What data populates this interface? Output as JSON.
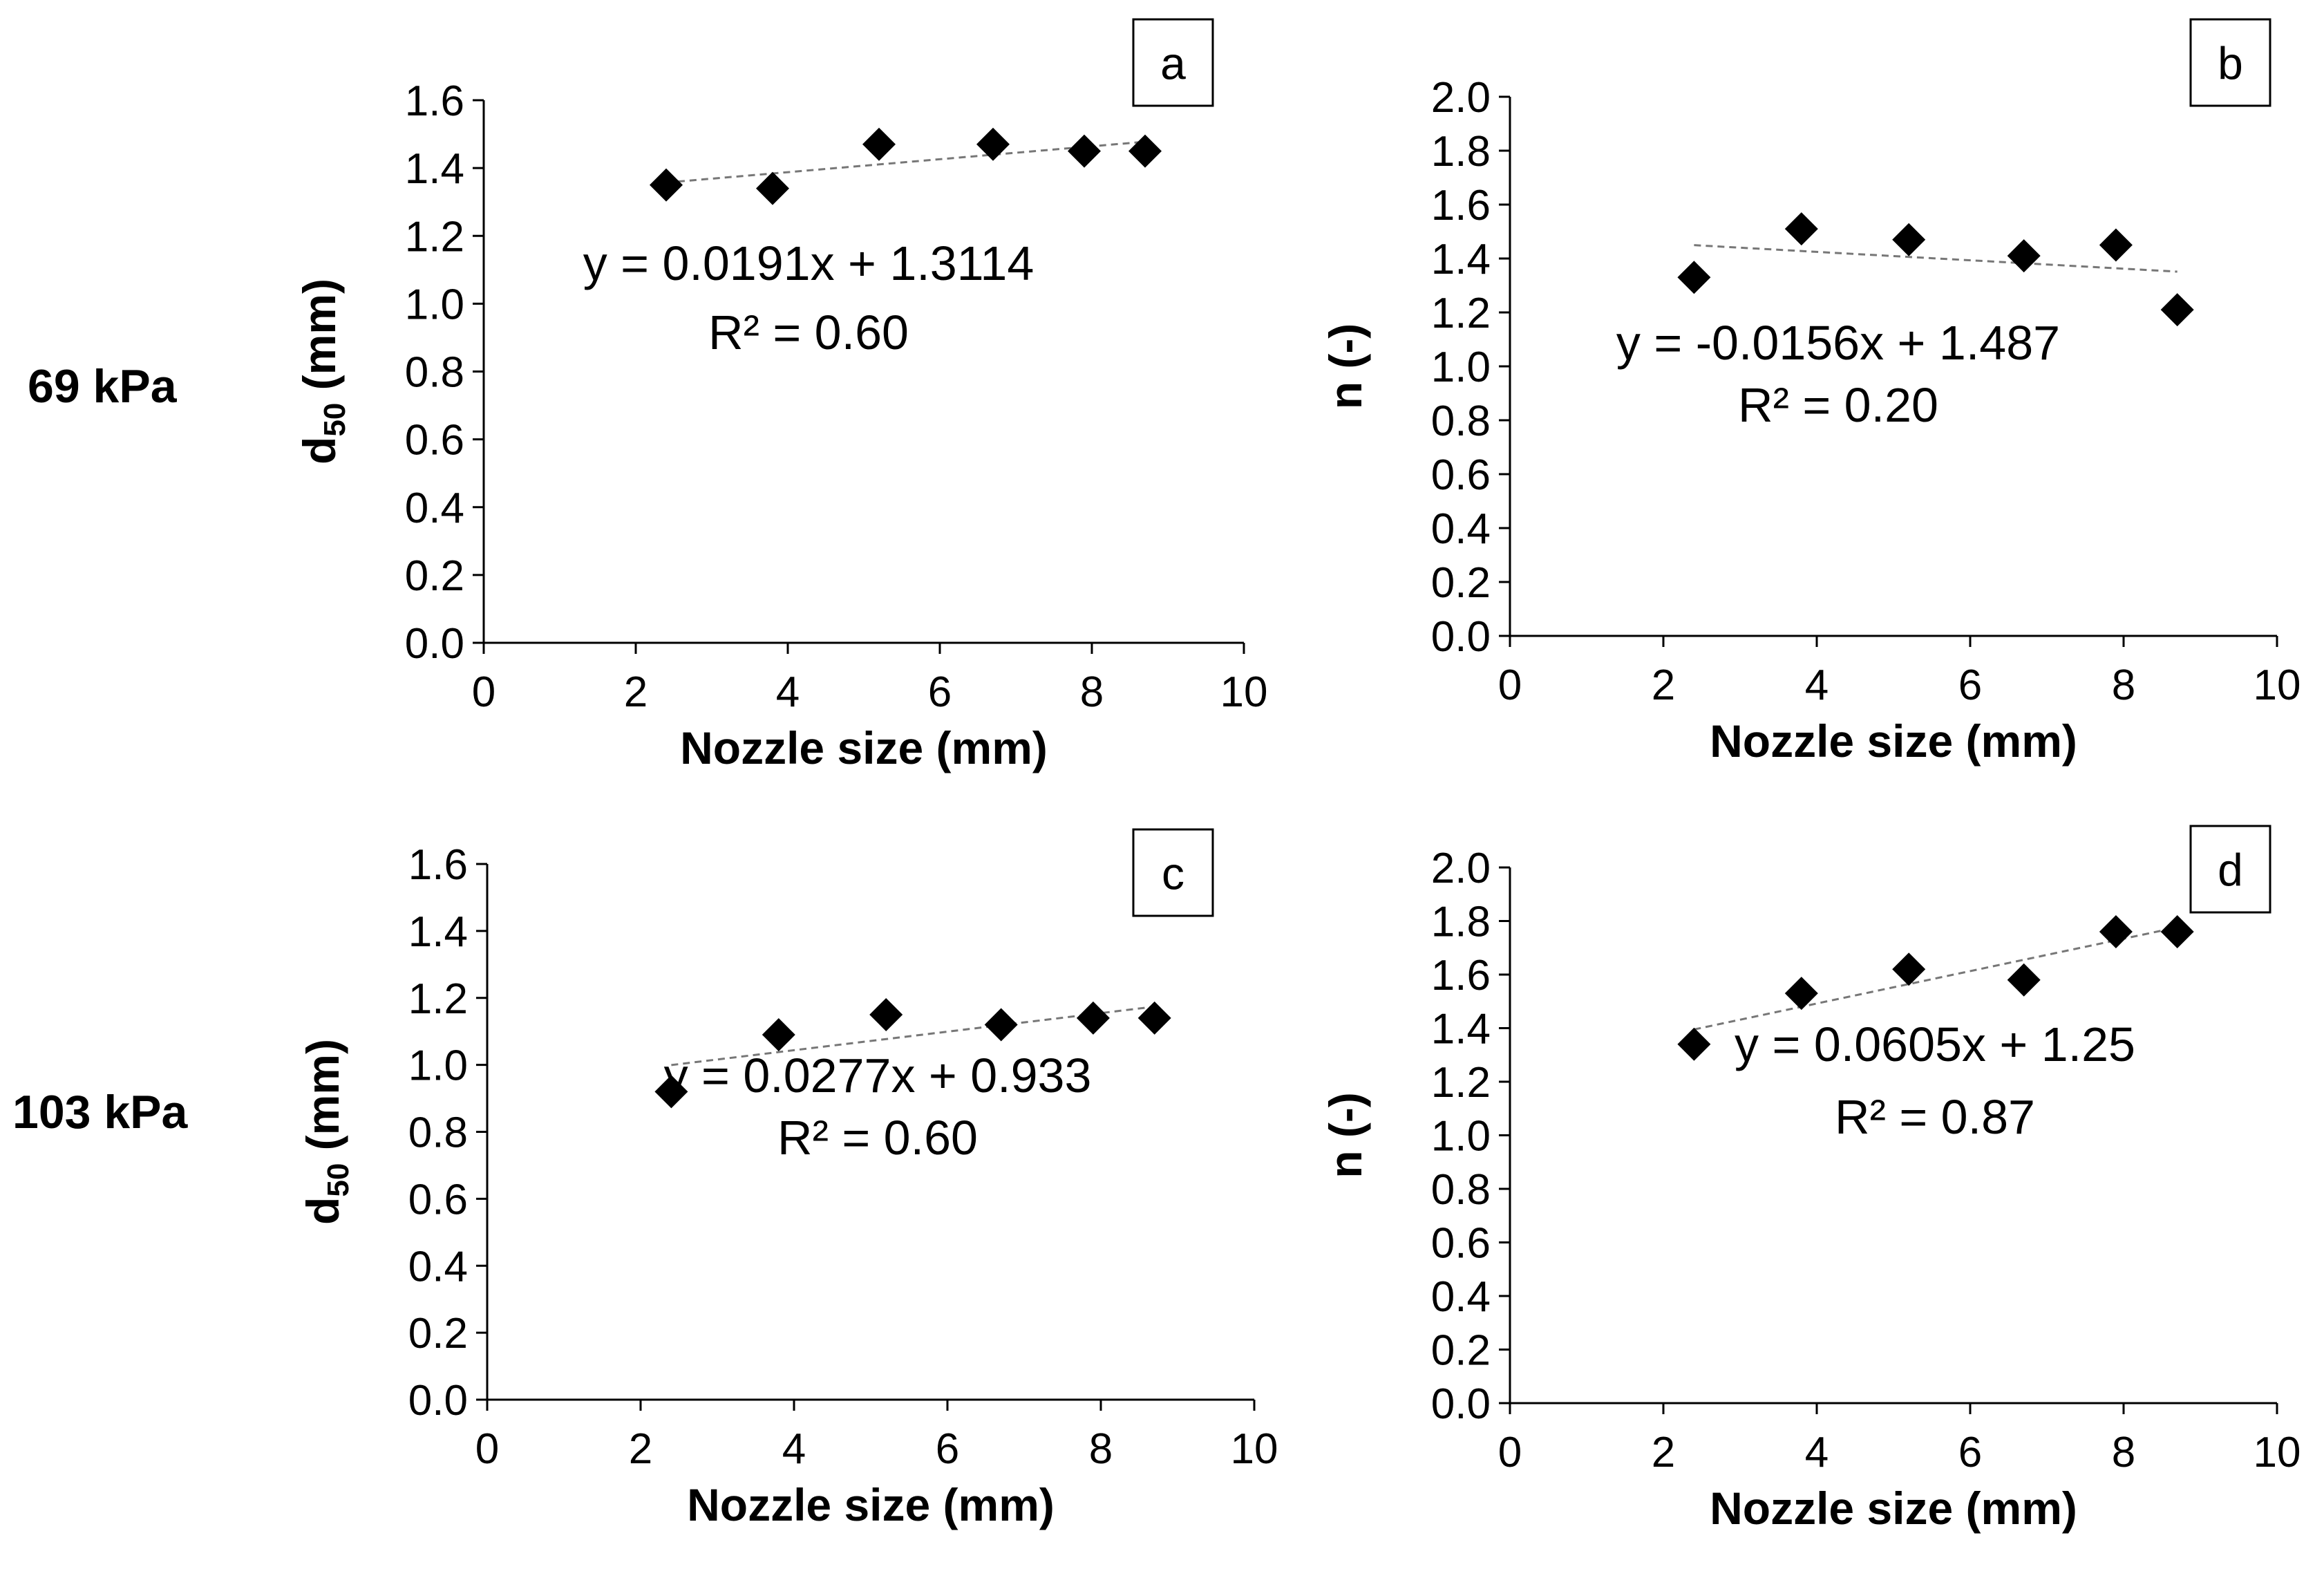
{
  "row_labels": [
    "69 kPa",
    "103 kPa"
  ],
  "chart_data": [
    {
      "type": "scatter",
      "panel": "a",
      "xlabel": "Nozzle size (mm)",
      "ylabel_main": "d",
      "ylabel_sub": "50",
      "ylabel_tail": " (mm)",
      "xlim": [
        0,
        10
      ],
      "xticks": [
        0,
        2,
        4,
        6,
        8,
        10
      ],
      "ylim": [
        0,
        1.6
      ],
      "yticks": [
        "0.0",
        "0.2",
        "0.4",
        "0.6",
        "0.8",
        "1.0",
        "1.2",
        "1.4",
        "1.6"
      ],
      "x": [
        2.4,
        3.8,
        5.2,
        6.7,
        7.9,
        8.7
      ],
      "y": [
        1.35,
        1.34,
        1.47,
        1.47,
        1.45,
        1.45
      ],
      "trendline": {
        "slope": 0.0191,
        "intercept": 1.3114,
        "equation": "y = 0.0191x + 1.3114",
        "r2": "R² = 0.60"
      }
    },
    {
      "type": "scatter",
      "panel": "b",
      "xlabel": "Nozzle size (mm)",
      "ylabel_main": "n (-)",
      "xlim": [
        0,
        10
      ],
      "xticks": [
        0,
        2,
        4,
        6,
        8,
        10
      ],
      "ylim": [
        0,
        2.0
      ],
      "yticks": [
        "0.0",
        "0.2",
        "0.4",
        "0.6",
        "0.8",
        "1.0",
        "1.2",
        "1.4",
        "1.6",
        "1.8",
        "2.0"
      ],
      "x": [
        2.4,
        3.8,
        5.2,
        6.7,
        7.9,
        8.7
      ],
      "y": [
        1.33,
        1.51,
        1.47,
        1.41,
        1.45,
        1.21
      ],
      "trendline": {
        "slope": -0.0156,
        "intercept": 1.487,
        "equation": "y = -0.0156x + 1.487",
        "r2": "R² = 0.20"
      }
    },
    {
      "type": "scatter",
      "panel": "c",
      "xlabel": "Nozzle size (mm)",
      "ylabel_main": "d",
      "ylabel_sub": "50",
      "ylabel_tail": " (mm)",
      "xlim": [
        0,
        10
      ],
      "xticks": [
        0,
        2,
        4,
        6,
        8,
        10
      ],
      "ylim": [
        0,
        1.6
      ],
      "yticks": [
        "0.0",
        "0.2",
        "0.4",
        "0.6",
        "0.8",
        "1.0",
        "1.2",
        "1.4",
        "1.6"
      ],
      "x": [
        2.4,
        3.8,
        5.2,
        6.7,
        7.9,
        8.7
      ],
      "y": [
        0.92,
        1.09,
        1.15,
        1.12,
        1.14,
        1.14
      ],
      "trendline": {
        "slope": 0.0277,
        "intercept": 0.933,
        "equation": "y = 0.0277x + 0.933",
        "r2": "R² = 0.60"
      }
    },
    {
      "type": "scatter",
      "panel": "d",
      "xlabel": "Nozzle size (mm)",
      "ylabel_main": "n (-)",
      "xlim": [
        0,
        10
      ],
      "xticks": [
        0,
        2,
        4,
        6,
        8,
        10
      ],
      "ylim": [
        0,
        2.0
      ],
      "yticks": [
        "0.0",
        "0.2",
        "0.4",
        "0.6",
        "0.8",
        "1.0",
        "1.2",
        "1.4",
        "1.6",
        "1.8",
        "2.0"
      ],
      "x": [
        2.4,
        3.8,
        5.2,
        6.7,
        7.9,
        8.7
      ],
      "y": [
        1.34,
        1.53,
        1.62,
        1.58,
        1.76,
        1.76
      ],
      "trendline": {
        "slope": 0.0605,
        "intercept": 1.25,
        "equation": "y = 0.0605x + 1.25",
        "r2": "R² = 0.87"
      }
    }
  ]
}
